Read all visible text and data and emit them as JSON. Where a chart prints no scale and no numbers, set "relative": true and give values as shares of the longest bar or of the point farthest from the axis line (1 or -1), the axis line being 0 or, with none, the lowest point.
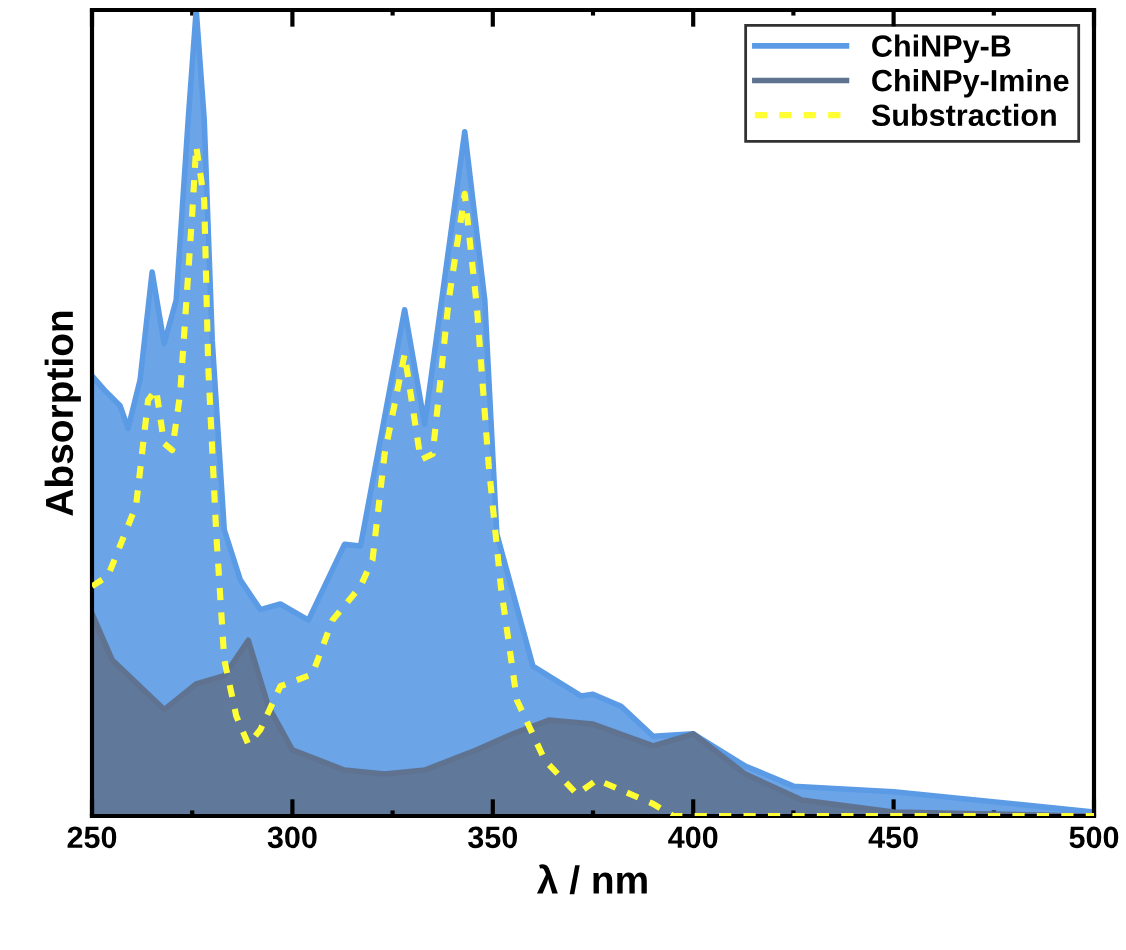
{
  "chart_data": {
    "type": "area",
    "relative": true,
    "xlabel": "λ / nm",
    "ylabel": "Absorption",
    "xlim": [
      250,
      500
    ],
    "xticks": [
      250,
      300,
      350,
      400,
      450,
      500
    ],
    "legend": "top right",
    "grid": false,
    "series": [
      {
        "name": "ChiNPy-B",
        "color": "#5b9be6",
        "x": [
          250,
          253,
          257,
          259,
          262,
          265,
          268,
          271,
          274,
          276,
          278,
          280,
          283,
          287,
          292,
          297,
          304,
          313,
          317,
          328,
          333,
          343,
          348,
          351,
          360,
          372,
          375,
          382,
          390,
          400,
          413,
          425,
          450,
          500
        ],
        "values": [
          0.546,
          0.529,
          0.509,
          0.481,
          0.541,
          0.675,
          0.586,
          0.64,
          0.864,
          1.0,
          0.864,
          0.59,
          0.355,
          0.293,
          0.256,
          0.263,
          0.243,
          0.337,
          0.335,
          0.628,
          0.486,
          0.849,
          0.64,
          0.35,
          0.186,
          0.149,
          0.151,
          0.136,
          0.099,
          0.102,
          0.062,
          0.037,
          0.03,
          0.005
        ]
      },
      {
        "name": "ChiNPy-Imine",
        "color": "#5f7391",
        "x": [
          250,
          255,
          268,
          276,
          283,
          289,
          294,
          300,
          313,
          323,
          333,
          346,
          355,
          364,
          375,
          390,
          400,
          413,
          427,
          450,
          500
        ],
        "values": [
          0.251,
          0.194,
          0.132,
          0.164,
          0.174,
          0.218,
          0.136,
          0.082,
          0.057,
          0.052,
          0.057,
          0.082,
          0.102,
          0.119,
          0.114,
          0.087,
          0.102,
          0.052,
          0.02,
          0.005,
          0
        ]
      },
      {
        "name": "Substraction",
        "type": "line",
        "line_style": "dotted",
        "color": "#ffff33",
        "x": [
          250,
          254,
          261,
          264,
          266,
          268,
          270,
          272,
          275,
          276,
          278,
          279,
          281,
          283,
          286,
          289,
          292,
          297,
          305,
          310,
          317,
          320,
          323,
          328,
          332,
          335,
          339,
          343,
          346,
          349,
          352,
          356,
          363,
          371,
          376,
          390,
          395,
          450,
          500
        ],
        "values": [
          0.285,
          0.298,
          0.385,
          0.516,
          0.529,
          0.462,
          0.454,
          0.524,
          0.747,
          0.831,
          0.764,
          0.558,
          0.35,
          0.194,
          0.124,
          0.089,
          0.107,
          0.161,
          0.176,
          0.243,
          0.285,
          0.318,
          0.449,
          0.573,
          0.442,
          0.449,
          0.64,
          0.772,
          0.633,
          0.434,
          0.285,
          0.144,
          0.069,
          0.027,
          0.045,
          0.015,
          0,
          0,
          0
        ]
      }
    ]
  }
}
